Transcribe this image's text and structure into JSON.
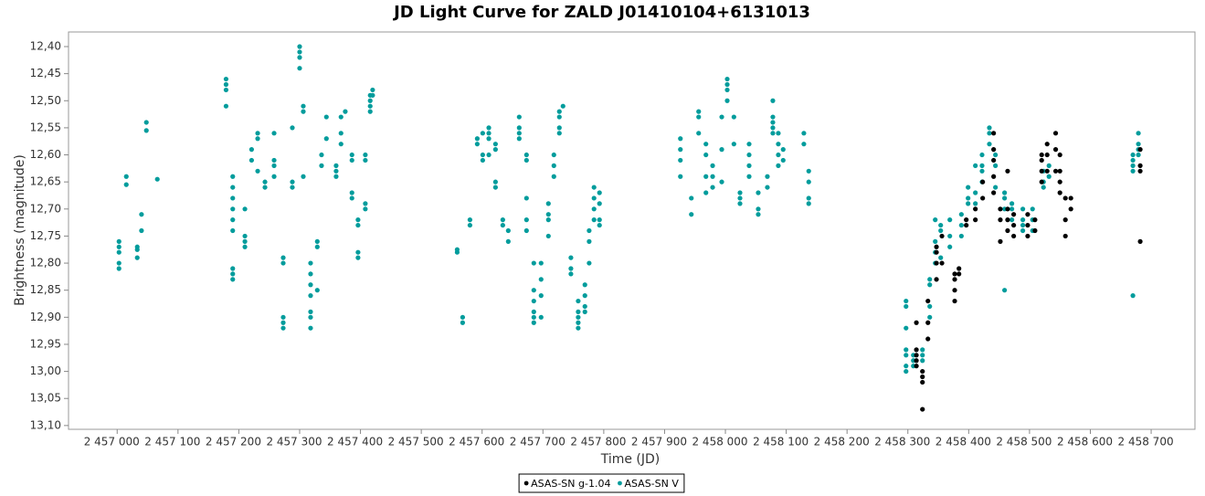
{
  "chart_data": {
    "type": "scatter",
    "title": "JD Light Curve for ZALD J01410104+6131013",
    "x_label": "Time (JD)",
    "y_label": "Brightness (magnitude)",
    "xlim": [
      2456920,
      2458772
    ],
    "ylim": [
      13.107,
      12.373
    ],
    "xticks": [
      {
        "value": 2457000,
        "label": "2 457 000"
      },
      {
        "value": 2457100,
        "label": "2 457 100"
      },
      {
        "value": 2457200,
        "label": "2 457 200"
      },
      {
        "value": 2457300,
        "label": "2 457 300"
      },
      {
        "value": 2457400,
        "label": "2 457 400"
      },
      {
        "value": 2457500,
        "label": "2 457 500"
      },
      {
        "value": 2457600,
        "label": "2 457 600"
      },
      {
        "value": 2457700,
        "label": "2 457 700"
      },
      {
        "value": 2457800,
        "label": "2 457 800"
      },
      {
        "value": 2457900,
        "label": "2 457 900"
      },
      {
        "value": 2458000,
        "label": "2 458 000"
      },
      {
        "value": 2458100,
        "label": "2 458 100"
      },
      {
        "value": 2458200,
        "label": "2 458 200"
      },
      {
        "value": 2458300,
        "label": "2 458 300"
      },
      {
        "value": 2458400,
        "label": "2 458 400"
      },
      {
        "value": 2458500,
        "label": "2 458 500"
      },
      {
        "value": 2458600,
        "label": "2 458 600"
      },
      {
        "value": 2458700,
        "label": "2 458 700"
      }
    ],
    "yticks": [
      {
        "value": 12.4,
        "label": "12,40"
      },
      {
        "value": 12.45,
        "label": "12,45"
      },
      {
        "value": 12.5,
        "label": "12,50"
      },
      {
        "value": 12.55,
        "label": "12,55"
      },
      {
        "value": 12.6,
        "label": "12,60"
      },
      {
        "value": 12.65,
        "label": "12,65"
      },
      {
        "value": 12.7,
        "label": "12,70"
      },
      {
        "value": 12.75,
        "label": "12,75"
      },
      {
        "value": 12.8,
        "label": "12,80"
      },
      {
        "value": 12.85,
        "label": "12,85"
      },
      {
        "value": 12.9,
        "label": "12,90"
      },
      {
        "value": 12.95,
        "label": "12,95"
      },
      {
        "value": 13.0,
        "label": "13,00"
      },
      {
        "value": 13.05,
        "label": "13,05"
      },
      {
        "value": 13.1,
        "label": "13,10"
      }
    ],
    "grid": false,
    "legend": "bottom",
    "series": [
      {
        "name": "ASAS-SN g-1.04",
        "color": "#000000",
        "x": [
          2458314,
          2458314,
          2458314,
          2458314,
          2458314,
          2458324,
          2458324,
          2458324,
          2458324,
          2458333,
          2458333,
          2458333,
          2458347,
          2458347,
          2458347,
          2458347,
          2458356,
          2458356,
          2458377,
          2458377,
          2458377,
          2458377,
          2458384,
          2458384,
          2458396,
          2458396,
          2458411,
          2458411,
          2458423,
          2458423,
          2458441,
          2458441,
          2458441,
          2458441,
          2458441,
          2458452,
          2458452,
          2458452,
          2458464,
          2458464,
          2458464,
          2458464,
          2458474,
          2458474,
          2458474,
          2458497,
          2458497,
          2458497,
          2458509,
          2458509,
          2458520,
          2458520,
          2458520,
          2458520,
          2458529,
          2458529,
          2458529,
          2458543,
          2458543,
          2458543,
          2458550,
          2458550,
          2458550,
          2458550,
          2458559,
          2458559,
          2458559,
          2458568,
          2458568,
          2458682,
          2458682,
          2458682,
          2458682
        ],
        "values": [
          12.91,
          12.96,
          12.97,
          12.98,
          12.99,
          13.0,
          13.01,
          13.02,
          13.07,
          12.91,
          12.94,
          12.87,
          12.77,
          12.78,
          12.8,
          12.83,
          12.75,
          12.8,
          12.82,
          12.83,
          12.85,
          12.87,
          12.81,
          12.82,
          12.72,
          12.73,
          12.7,
          12.72,
          12.65,
          12.68,
          12.59,
          12.61,
          12.64,
          12.67,
          12.56,
          12.7,
          12.72,
          12.76,
          12.7,
          12.72,
          12.74,
          12.63,
          12.71,
          12.73,
          12.75,
          12.71,
          12.73,
          12.75,
          12.72,
          12.74,
          12.61,
          12.63,
          12.65,
          12.6,
          12.63,
          12.6,
          12.58,
          12.56,
          12.59,
          12.63,
          12.6,
          12.63,
          12.65,
          12.67,
          12.72,
          12.68,
          12.75,
          12.68,
          12.7,
          12.59,
          12.62,
          12.63,
          12.76
        ]
      },
      {
        "name": "ASAS-SN V",
        "color": "#009c9c",
        "x": [
          2457003,
          2457003,
          2457003,
          2457003,
          2457003,
          2457015,
          2457015,
          2457033,
          2457033,
          2457033,
          2457040,
          2457040,
          2457048,
          2457048,
          2457066,
          2457179,
          2457179,
          2457179,
          2457179,
          2457190,
          2457190,
          2457190,
          2457190,
          2457190,
          2457190,
          2457190,
          2457190,
          2457190,
          2457210,
          2457210,
          2457210,
          2457210,
          2457221,
          2457221,
          2457231,
          2457231,
          2457231,
          2457243,
          2457243,
          2457258,
          2457258,
          2457258,
          2457258,
          2457273,
          2457273,
          2457273,
          2457273,
          2457273,
          2457288,
          2457288,
          2457288,
          2457300,
          2457300,
          2457300,
          2457300,
          2457306,
          2457306,
          2457306,
          2457318,
          2457318,
          2457318,
          2457318,
          2457318,
          2457318,
          2457318,
          2457329,
          2457329,
          2457329,
          2457336,
          2457336,
          2457344,
          2457344,
          2457360,
          2457360,
          2457360,
          2457368,
          2457368,
          2457368,
          2457375,
          2457386,
          2457386,
          2457386,
          2457386,
          2457396,
          2457396,
          2457396,
          2457396,
          2457408,
          2457408,
          2457408,
          2457408,
          2457416,
          2457416,
          2457416,
          2457416,
          2457420,
          2457420,
          2457559,
          2457559,
          2457568,
          2457568,
          2457580,
          2457580,
          2457592,
          2457592,
          2457601,
          2457601,
          2457601,
          2457611,
          2457611,
          2457611,
          2457611,
          2457622,
          2457622,
          2457622,
          2457622,
          2457634,
          2457634,
          2457643,
          2457643,
          2457661,
          2457661,
          2457661,
          2457661,
          2457673,
          2457673,
          2457673,
          2457673,
          2457673,
          2457685,
          2457685,
          2457685,
          2457685,
          2457685,
          2457685,
          2457697,
          2457697,
          2457697,
          2457697,
          2457709,
          2457709,
          2457709,
          2457709,
          2457718,
          2457718,
          2457718,
          2457727,
          2457727,
          2457727,
          2457727,
          2457733,
          2457746,
          2457746,
          2457746,
          2457758,
          2457758,
          2457758,
          2457758,
          2457758,
          2457769,
          2457769,
          2457769,
          2457769,
          2457776,
          2457776,
          2457776,
          2457784,
          2457784,
          2457784,
          2457784,
          2457793,
          2457793,
          2457793,
          2457793,
          2457926,
          2457926,
          2457926,
          2457926,
          2457944,
          2457944,
          2457956,
          2457956,
          2457956,
          2457968,
          2457968,
          2457968,
          2457968,
          2457979,
          2457979,
          2457979,
          2457994,
          2457994,
          2457994,
          2458003,
          2458003,
          2458003,
          2458003,
          2458014,
          2458014,
          2458024,
          2458024,
          2458024,
          2458039,
          2458039,
          2458039,
          2458039,
          2458054,
          2458054,
          2458054,
          2458069,
          2458069,
          2458078,
          2458078,
          2458078,
          2458078,
          2458078,
          2458087,
          2458087,
          2458087,
          2458087,
          2458095,
          2458095,
          2458129,
          2458129,
          2458137,
          2458137,
          2458137,
          2458137,
          2458297,
          2458297,
          2458297,
          2458297,
          2458297,
          2458297,
          2458297,
          2458309,
          2458309,
          2458309,
          2458324,
          2458324,
          2458324,
          2458336,
          2458336,
          2458336,
          2458336,
          2458345,
          2458345,
          2458345,
          2458345,
          2458354,
          2458354,
          2458354,
          2458369,
          2458369,
          2458369,
          2458388,
          2458388,
          2458388,
          2458399,
          2458399,
          2458399,
          2458411,
          2458411,
          2458411,
          2458422,
          2458422,
          2458422,
          2458422,
          2458434,
          2458434,
          2458434,
          2458444,
          2458444,
          2458444,
          2458459,
          2458459,
          2458459,
          2458459,
          2458471,
          2458471,
          2458471,
          2458489,
          2458489,
          2458489,
          2458489,
          2458505,
          2458505,
          2458505,
          2458523,
          2458523,
          2458523,
          2458532,
          2458532,
          2458670,
          2458670,
          2458670,
          2458670,
          2458670,
          2458679,
          2458679,
          2458679,
          2458679
        ],
        "values": [
          12.76,
          12.77,
          12.78,
          12.8,
          12.81,
          12.64,
          12.655,
          12.77,
          12.79,
          12.775,
          12.71,
          12.74,
          12.54,
          12.555,
          12.645,
          12.46,
          12.47,
          12.48,
          12.51,
          12.64,
          12.66,
          12.68,
          12.7,
          12.72,
          12.74,
          12.81,
          12.82,
          12.83,
          12.7,
          12.75,
          12.76,
          12.77,
          12.61,
          12.59,
          12.57,
          12.56,
          12.63,
          12.65,
          12.66,
          12.56,
          12.61,
          12.62,
          12.64,
          12.79,
          12.8,
          12.9,
          12.91,
          12.92,
          12.55,
          12.65,
          12.66,
          12.4,
          12.41,
          12.42,
          12.44,
          12.51,
          12.52,
          12.64,
          12.8,
          12.82,
          12.84,
          12.86,
          12.89,
          12.9,
          12.92,
          12.76,
          12.77,
          12.85,
          12.6,
          12.62,
          12.53,
          12.57,
          12.62,
          12.63,
          12.64,
          12.56,
          12.58,
          12.53,
          12.52,
          12.6,
          12.61,
          12.67,
          12.68,
          12.72,
          12.73,
          12.78,
          12.79,
          12.6,
          12.61,
          12.69,
          12.7,
          12.49,
          12.5,
          12.51,
          12.52,
          12.48,
          12.49,
          12.775,
          12.78,
          12.9,
          12.91,
          12.72,
          12.73,
          12.57,
          12.58,
          12.56,
          12.6,
          12.61,
          12.55,
          12.56,
          12.57,
          12.6,
          12.58,
          12.59,
          12.65,
          12.66,
          12.72,
          12.73,
          12.74,
          12.76,
          12.53,
          12.55,
          12.56,
          12.57,
          12.6,
          12.61,
          12.68,
          12.72,
          12.74,
          12.8,
          12.85,
          12.87,
          12.89,
          12.9,
          12.91,
          12.8,
          12.83,
          12.86,
          12.9,
          12.69,
          12.71,
          12.72,
          12.75,
          12.6,
          12.62,
          12.64,
          12.55,
          12.56,
          12.52,
          12.53,
          12.51,
          12.79,
          12.81,
          12.82,
          12.87,
          12.89,
          12.9,
          12.91,
          12.92,
          12.84,
          12.86,
          12.88,
          12.89,
          12.74,
          12.76,
          12.8,
          12.66,
          12.68,
          12.7,
          12.72,
          12.67,
          12.69,
          12.72,
          12.73,
          12.57,
          12.59,
          12.61,
          12.64,
          12.68,
          12.71,
          12.52,
          12.53,
          12.56,
          12.58,
          12.6,
          12.64,
          12.67,
          12.62,
          12.64,
          12.66,
          12.53,
          12.59,
          12.65,
          12.46,
          12.47,
          12.48,
          12.5,
          12.53,
          12.58,
          12.67,
          12.68,
          12.69,
          12.58,
          12.6,
          12.62,
          12.64,
          12.67,
          12.7,
          12.71,
          12.64,
          12.66,
          12.53,
          12.54,
          12.55,
          12.56,
          12.5,
          12.56,
          12.58,
          12.6,
          12.62,
          12.59,
          12.61,
          12.56,
          12.58,
          12.63,
          12.65,
          12.68,
          12.69,
          12.87,
          12.88,
          12.92,
          12.96,
          12.97,
          12.99,
          13.0,
          12.97,
          12.98,
          12.99,
          12.96,
          12.97,
          12.98,
          12.83,
          12.84,
          12.88,
          12.9,
          12.72,
          12.76,
          12.78,
          12.8,
          12.73,
          12.74,
          12.79,
          12.72,
          12.75,
          12.77,
          12.71,
          12.73,
          12.75,
          12.66,
          12.68,
          12.69,
          12.67,
          12.69,
          12.62,
          12.62,
          12.63,
          12.65,
          12.6,
          12.55,
          12.56,
          12.58,
          12.6,
          12.62,
          12.66,
          12.67,
          12.68,
          12.7,
          12.85,
          12.69,
          12.7,
          12.72,
          12.7,
          12.72,
          12.73,
          12.74,
          12.7,
          12.72,
          12.74,
          12.63,
          12.65,
          12.66,
          12.62,
          12.64,
          12.6,
          12.61,
          12.62,
          12.63,
          12.86,
          12.56,
          12.58,
          12.6,
          12.59
        ]
      }
    ]
  }
}
